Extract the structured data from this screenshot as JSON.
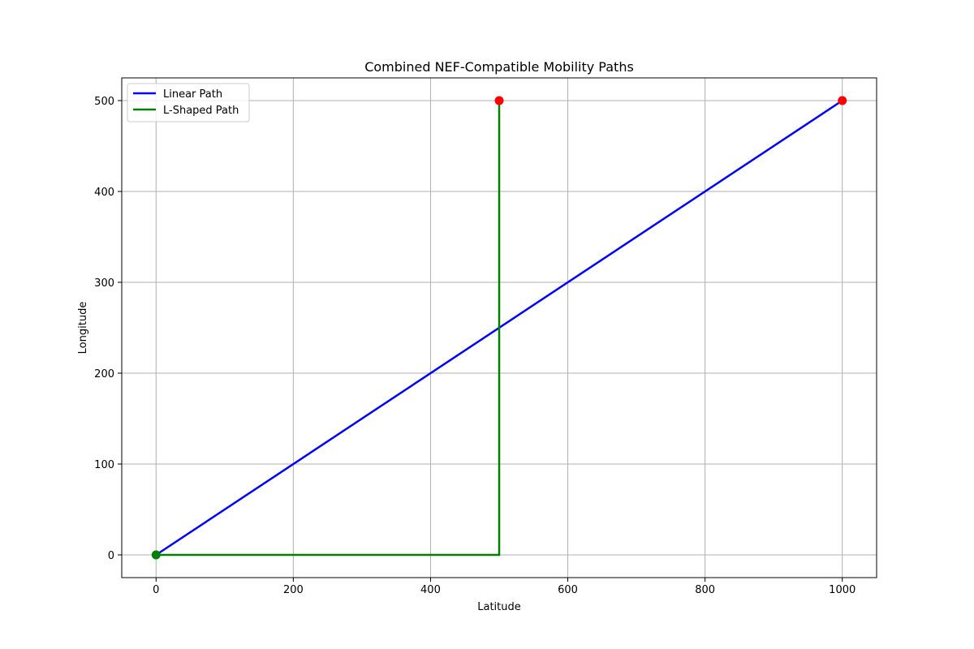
{
  "chart_data": {
    "type": "line",
    "title": "Combined NEF-Compatible Mobility Paths",
    "xlabel": "Latitude",
    "ylabel": "Longitude",
    "xlim": [
      -50,
      1050
    ],
    "ylim": [
      -25,
      525
    ],
    "xticks": [
      0,
      200,
      400,
      600,
      800,
      1000
    ],
    "yticks": [
      0,
      100,
      200,
      300,
      400,
      500
    ],
    "grid": true,
    "legend_position": "top-left",
    "series": [
      {
        "name": "Linear Path",
        "color": "#0000ff",
        "points": [
          [
            0,
            0
          ],
          [
            1000,
            500
          ]
        ]
      },
      {
        "name": "L-Shaped Path",
        "color": "#008000",
        "points": [
          [
            0,
            0
          ],
          [
            500,
            0
          ],
          [
            500,
            500
          ]
        ]
      }
    ],
    "markers": [
      {
        "role": "start",
        "color": "#008000",
        "points": [
          [
            0,
            0
          ]
        ]
      },
      {
        "role": "end",
        "color": "#ff0000",
        "points": [
          [
            500,
            500
          ],
          [
            1000,
            500
          ]
        ]
      }
    ]
  }
}
